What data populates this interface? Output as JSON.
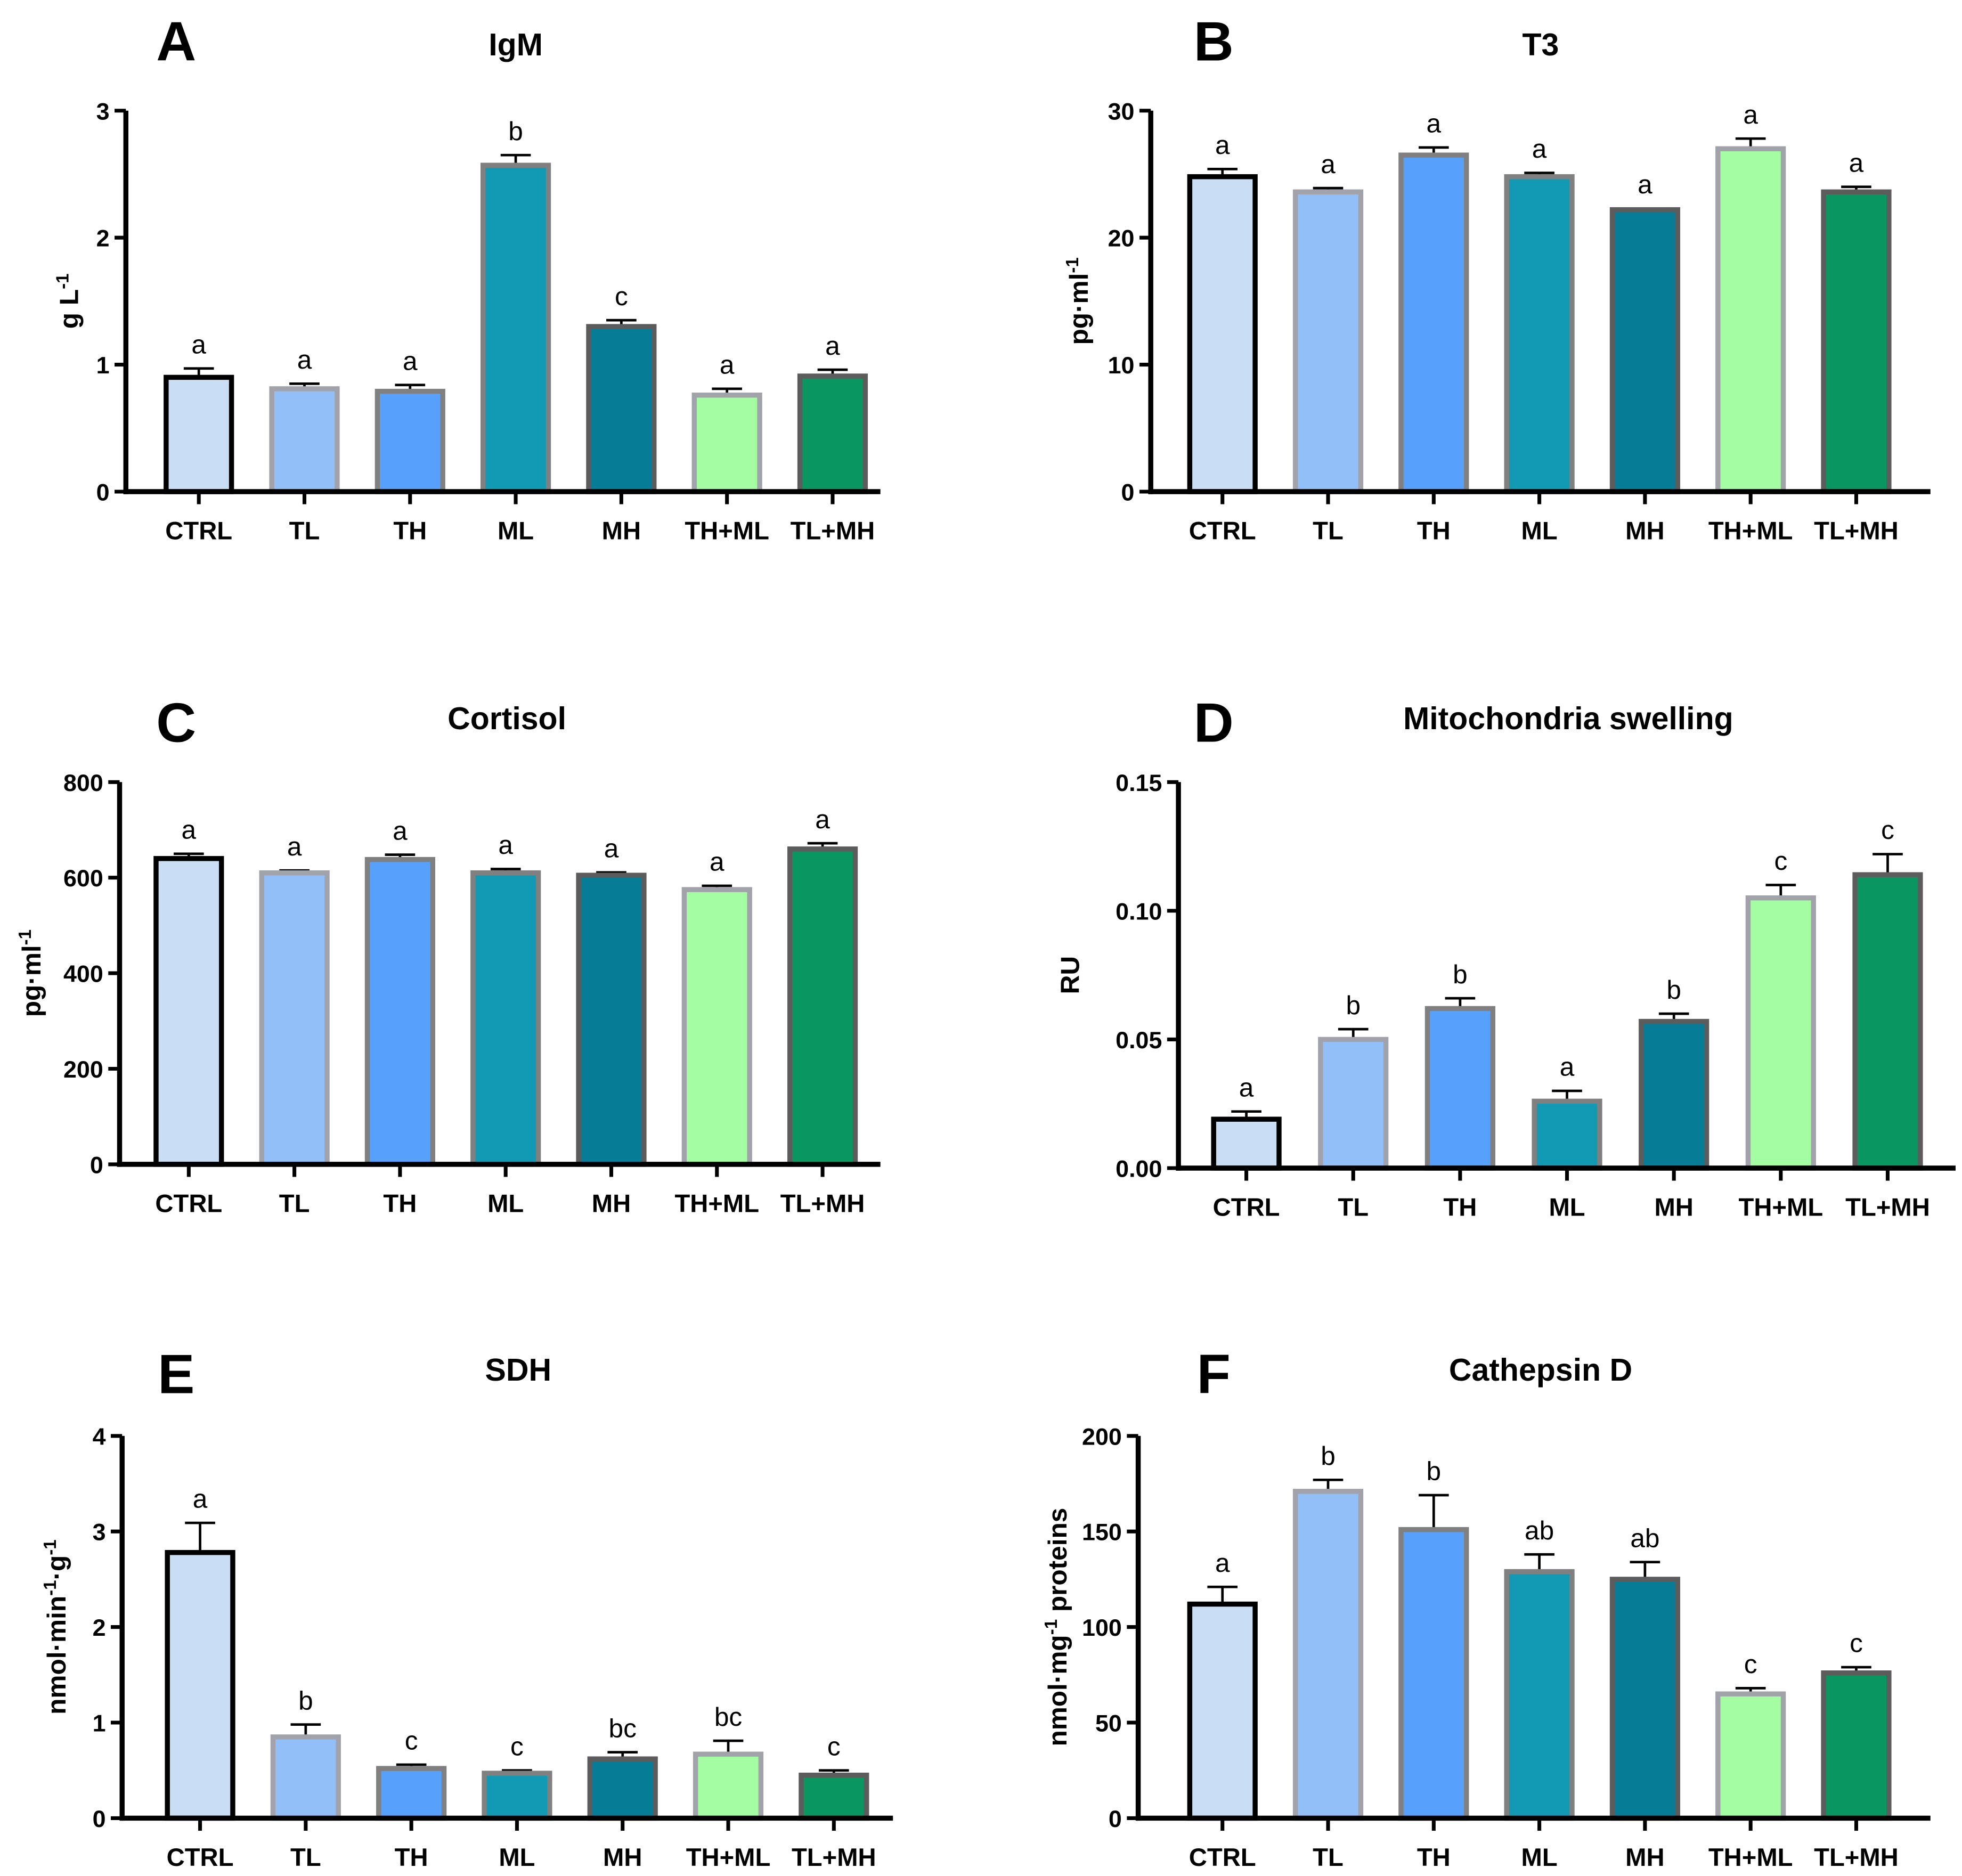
{
  "groups": [
    "CTRL",
    "TL",
    "TH",
    "ML",
    "MH",
    "TH+ML",
    "TL+MH"
  ],
  "group_colors": {
    "fill": [
      "#c9ddf5",
      "#92bff8",
      "#57a1fc",
      "#129ab5",
      "#067c96",
      "#a4fda2",
      "#0a9660"
    ],
    "border": [
      "#000000",
      "#a2a2aa",
      "#808080",
      "#808080",
      "#5c5c5c",
      "#a2a2aa",
      "#5c5c5c"
    ]
  },
  "chart_data": [
    {
      "type": "bar",
      "panel": "A",
      "title": "IgM",
      "ylabel": "g L",
      "ylabel_sup": "-1",
      "ylim": [
        0,
        3
      ],
      "yticks": [
        "0",
        "1",
        "2",
        "3"
      ],
      "categories": [
        "CTRL",
        "TL",
        "TH",
        "ML",
        "MH",
        "TH+ML",
        "TL+MH"
      ],
      "values": [
        0.9,
        0.81,
        0.79,
        2.57,
        1.3,
        0.76,
        0.91
      ],
      "errors": [
        0.07,
        0.04,
        0.05,
        0.08,
        0.05,
        0.05,
        0.05
      ],
      "letters": [
        "a",
        "a",
        "a",
        "b",
        "c",
        "a",
        "a"
      ]
    },
    {
      "type": "bar",
      "panel": "B",
      "title": "T3",
      "ylabel": "pg·ml",
      "ylabel_sup": "-1",
      "ylim": [
        0,
        30
      ],
      "yticks": [
        "0",
        "10",
        "20",
        "30"
      ],
      "categories": [
        "CTRL",
        "TL",
        "TH",
        "ML",
        "MH",
        "TH+ML",
        "TL+MH"
      ],
      "values": [
        24.8,
        23.6,
        26.5,
        24.8,
        22.2,
        27.0,
        23.6
      ],
      "errors": [
        0.6,
        0.3,
        0.6,
        0.3,
        0.1,
        0.8,
        0.4
      ],
      "letters": [
        "a",
        "a",
        "a",
        "a",
        "a",
        "a",
        "a"
      ]
    },
    {
      "type": "bar",
      "panel": "C",
      "title": "Cortisol",
      "ylabel": "pg·ml",
      "ylabel_sup": "-1",
      "ylim": [
        0,
        800
      ],
      "yticks": [
        "0",
        "200",
        "400",
        "600",
        "800"
      ],
      "categories": [
        "CTRL",
        "TL",
        "TH",
        "ML",
        "MH",
        "TH+ML",
        "TL+MH"
      ],
      "values": [
        640,
        610,
        638,
        610,
        605,
        575,
        660
      ],
      "errors": [
        10,
        5,
        10,
        8,
        6,
        8,
        12
      ],
      "letters": [
        "a",
        "a",
        "a",
        "a",
        "a",
        "a",
        "a"
      ]
    },
    {
      "type": "bar",
      "panel": "D",
      "title": "Mitochondria swelling",
      "ylabel": "RU",
      "ylabel_sup": "",
      "ylim": [
        0,
        0.15
      ],
      "yticks": [
        "0.00",
        "0.05",
        "0.10",
        "0.15"
      ],
      "categories": [
        "CTRL",
        "TL",
        "TH",
        "ML",
        "MH",
        "TH+ML",
        "TL+MH"
      ],
      "values": [
        0.019,
        0.05,
        0.062,
        0.026,
        0.057,
        0.105,
        0.114
      ],
      "errors": [
        0.003,
        0.004,
        0.004,
        0.004,
        0.003,
        0.005,
        0.008
      ],
      "letters": [
        "a",
        "b",
        "b",
        "a",
        "b",
        "c",
        "c"
      ]
    },
    {
      "type": "bar",
      "panel": "E",
      "title": "SDH",
      "ylabel": "nmol·min",
      "ylabel_sup": "-1",
      "ylabel_tail": "·g",
      "ylabel_sup2": "-1",
      "ylim": [
        0,
        4
      ],
      "yticks": [
        "0",
        "1",
        "2",
        "3",
        "4"
      ],
      "categories": [
        "CTRL",
        "TL",
        "TH",
        "ML",
        "MH",
        "TH+ML",
        "TL+MH"
      ],
      "values": [
        2.78,
        0.85,
        0.52,
        0.47,
        0.62,
        0.67,
        0.45
      ],
      "errors": [
        0.31,
        0.13,
        0.04,
        0.03,
        0.07,
        0.14,
        0.05
      ],
      "letters": [
        "a",
        "b",
        "c",
        "c",
        "bc",
        "bc",
        "c"
      ]
    },
    {
      "type": "bar",
      "panel": "F",
      "title": "Cathepsin D",
      "ylabel": "nmol·mg",
      "ylabel_sup": "-1",
      "ylabel_tail": " proteins",
      "ylabel_sup2": "",
      "ylim": [
        0,
        200
      ],
      "yticks": [
        "0",
        "50",
        "100",
        "150",
        "200"
      ],
      "categories": [
        "CTRL",
        "TL",
        "TH",
        "ML",
        "MH",
        "TH+ML",
        "TL+MH"
      ],
      "values": [
        112,
        171,
        151,
        129,
        125,
        65,
        76
      ],
      "errors": [
        9,
        6,
        18,
        9,
        9,
        3,
        3
      ],
      "letters": [
        "a",
        "b",
        "b",
        "ab",
        "ab",
        "c",
        "c"
      ]
    }
  ]
}
